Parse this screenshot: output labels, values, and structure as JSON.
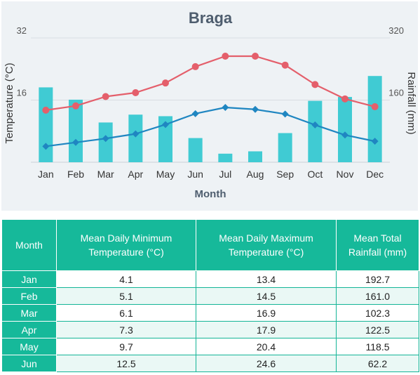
{
  "colors": {
    "temp_min": "#1f86c1",
    "temp_max": "#e45f6b",
    "rainfall": "#40cbd3",
    "table_header": "#16b99a"
  },
  "chart_data": {
    "type": "bar+line",
    "title": "Braga",
    "xlabel": "Month",
    "ylabel_left": "Temperature (°C)",
    "ylabel_right": "Rainfall (mm)",
    "categories": [
      "Jan",
      "Feb",
      "Mar",
      "Apr",
      "May",
      "Jun",
      "Jul",
      "Aug",
      "Sep",
      "Oct",
      "Nov",
      "Dec"
    ],
    "y_left_range": [
      0,
      32
    ],
    "y_left_ticks": [
      "16",
      "32"
    ],
    "y_right_range": [
      0,
      320
    ],
    "y_right_ticks": [
      "160",
      "320"
    ],
    "grid": true,
    "series": [
      {
        "kind": "bar",
        "axis": "right",
        "values": [
          192.7,
          161.0,
          102.3,
          122.5,
          118.5,
          62.2,
          22,
          28,
          75,
          158,
          168,
          222
        ]
      },
      {
        "kind": "line",
        "axis": "left",
        "marker": "circle",
        "values": [
          13.4,
          14.5,
          16.9,
          17.9,
          20.4,
          24.6,
          27.3,
          27.3,
          25.0,
          20.0,
          16.3,
          14.3
        ]
      },
      {
        "kind": "line",
        "axis": "left",
        "marker": "diamond",
        "values": [
          4.1,
          5.1,
          6.1,
          7.3,
          9.7,
          12.5,
          14.1,
          13.6,
          12.4,
          9.6,
          7.0,
          5.4
        ]
      }
    ]
  },
  "table": {
    "headers": [
      "Month",
      "Mean Daily Minimum Temperature (°C)",
      "Mean Daily Maximum Temperature (°C)",
      "Mean Total Rainfall (mm)"
    ],
    "rows": [
      [
        "Jan",
        "4.1",
        "13.4",
        "192.7"
      ],
      [
        "Feb",
        "5.1",
        "14.5",
        "161.0"
      ],
      [
        "Mar",
        "6.1",
        "16.9",
        "102.3"
      ],
      [
        "Apr",
        "7.3",
        "17.9",
        "122.5"
      ],
      [
        "May",
        "9.7",
        "20.4",
        "118.5"
      ],
      [
        "Jun",
        "12.5",
        "24.6",
        "62.2"
      ]
    ]
  }
}
